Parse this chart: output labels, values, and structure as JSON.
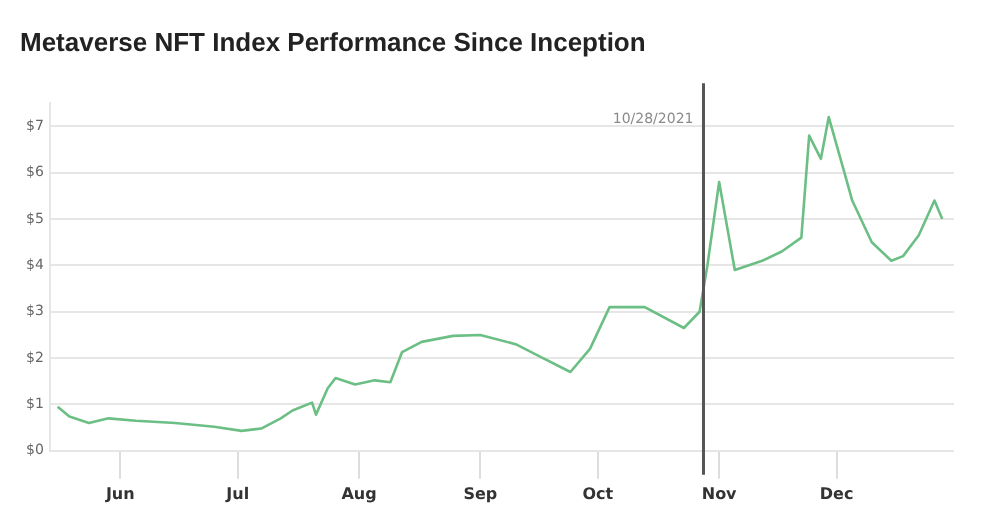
{
  "chart_data": {
    "type": "line",
    "title": "Metaverse NFT Index Performance Since Inception",
    "x": [
      "2021-05-16",
      "2021-05-19",
      "2021-05-24",
      "2021-05-29",
      "2021-06-05",
      "2021-06-15",
      "2021-06-25",
      "2021-07-02",
      "2021-07-07",
      "2021-07-12",
      "2021-07-15",
      "2021-07-20",
      "2021-07-21",
      "2021-07-24",
      "2021-07-26",
      "2021-07-31",
      "2021-08-05",
      "2021-08-09",
      "2021-08-12",
      "2021-08-17",
      "2021-08-25",
      "2021-09-01",
      "2021-09-10",
      "2021-09-17",
      "2021-09-24",
      "2021-09-29",
      "2021-10-04",
      "2021-10-13",
      "2021-10-23",
      "2021-10-27",
      "2021-10-29",
      "2021-11-01",
      "2021-11-05",
      "2021-11-12",
      "2021-11-17",
      "2021-11-22",
      "2021-11-24",
      "2021-11-27",
      "2021-11-29",
      "2021-12-03",
      "2021-12-05",
      "2021-12-10",
      "2021-12-15",
      "2021-12-18",
      "2021-12-22",
      "2021-12-26",
      "2021-12-28"
    ],
    "series": [
      {
        "color": "#6cbf84",
        "values": [
          0.95,
          0.74,
          0.6,
          0.7,
          0.65,
          0.6,
          0.52,
          0.43,
          0.48,
          0.7,
          0.87,
          1.04,
          0.78,
          1.35,
          1.57,
          1.43,
          1.52,
          1.48,
          2.13,
          2.35,
          2.48,
          2.5,
          2.3,
          2.0,
          1.7,
          2.2,
          3.1,
          3.1,
          2.65,
          3.0,
          4.0,
          5.8,
          3.9,
          4.1,
          4.3,
          4.6,
          6.8,
          6.3,
          7.2,
          6.0,
          5.4,
          4.5,
          4.1,
          4.2,
          4.65,
          5.4,
          5.0
        ]
      }
    ],
    "xlim": [
      "2021-05-14",
      "2021-12-31"
    ],
    "xticks": [
      {
        "value": "2021-06-01",
        "label": "Jun"
      },
      {
        "value": "2021-07-01",
        "label": "Jul"
      },
      {
        "value": "2021-08-01",
        "label": "Aug"
      },
      {
        "value": "2021-09-01",
        "label": "Sep"
      },
      {
        "value": "2021-10-01",
        "label": "Oct"
      },
      {
        "value": "2021-11-01",
        "label": "Nov"
      },
      {
        "value": "2021-12-01",
        "label": "Dec"
      }
    ],
    "ylim": [
      0,
      7.5
    ],
    "yticks": [
      {
        "value": 0,
        "label": "$0"
      },
      {
        "value": 1,
        "label": "$1"
      },
      {
        "value": 2,
        "label": "$2"
      },
      {
        "value": 3,
        "label": "$3"
      },
      {
        "value": 4,
        "label": "$4"
      },
      {
        "value": 5,
        "label": "$5"
      },
      {
        "value": 6,
        "label": "$6"
      },
      {
        "value": 7,
        "label": "$7"
      }
    ],
    "ref_lines": [
      {
        "axis": "x",
        "value": "2021-10-28",
        "label": "10/28/2021",
        "color": "#555555"
      }
    ],
    "grid": "y",
    "legend": false,
    "marker": "none",
    "line_style": "solid"
  }
}
